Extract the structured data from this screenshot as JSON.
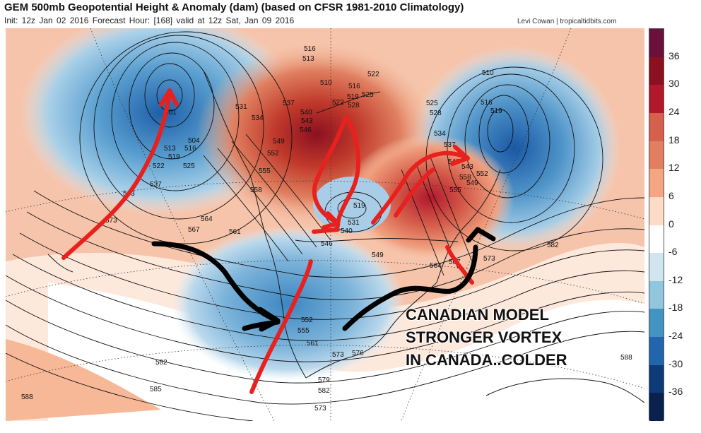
{
  "header": {
    "title": "GEM 500mb Geopotential Height & Anomaly (dam) (based on CFSR 1981-2010 Climatology)",
    "subtitle": "Init: 12z Jan 02 2016   Forecast Hour: [168]   valid at 12z Sat, Jan 09 2016",
    "credit": "Levi Cowan | tropicaltidbits.com"
  },
  "colorbar": {
    "labels": [
      "36",
      "30",
      "24",
      "18",
      "12",
      "6",
      "0",
      "-6",
      "-12",
      "-18",
      "-24",
      "-30",
      "-36"
    ],
    "colors": [
      "#6b0f3c",
      "#8b1020",
      "#b2182b",
      "#d6604d",
      "#e08060",
      "#f4a582",
      "#fddbc7",
      "#ffffff",
      "#d1e5f0",
      "#92c5de",
      "#4393c3",
      "#2166ac",
      "#0e3a7a",
      "#08214d"
    ]
  },
  "contour_labels": [
    "516",
    "513",
    "510",
    "516",
    "522",
    "519",
    "525",
    "522",
    "528",
    "531",
    "534",
    "537",
    "540",
    "543",
    "546",
    "549",
    "552",
    "555",
    "558",
    "561",
    "564",
    "567",
    "573",
    "582",
    "501",
    "504",
    "513",
    "516",
    "519",
    "522",
    "525",
    "537",
    "543",
    "510",
    "516",
    "519",
    "525",
    "528",
    "534",
    "537",
    "540",
    "543",
    "549",
    "552",
    "555",
    "558",
    "519",
    "531",
    "540",
    "546",
    "549",
    "564",
    "567",
    "573",
    "582",
    "588",
    "585",
    "582",
    "579",
    "573",
    "576",
    "561",
    "555",
    "552",
    "588",
    "573"
  ],
  "annotation": {
    "lines": [
      "CANADIAN MODEL",
      "STRONGER VORTEX",
      "IN CANADA..COLDER"
    ]
  },
  "arrows": {
    "red_color": "#e8201e",
    "black_color": "#000000"
  }
}
